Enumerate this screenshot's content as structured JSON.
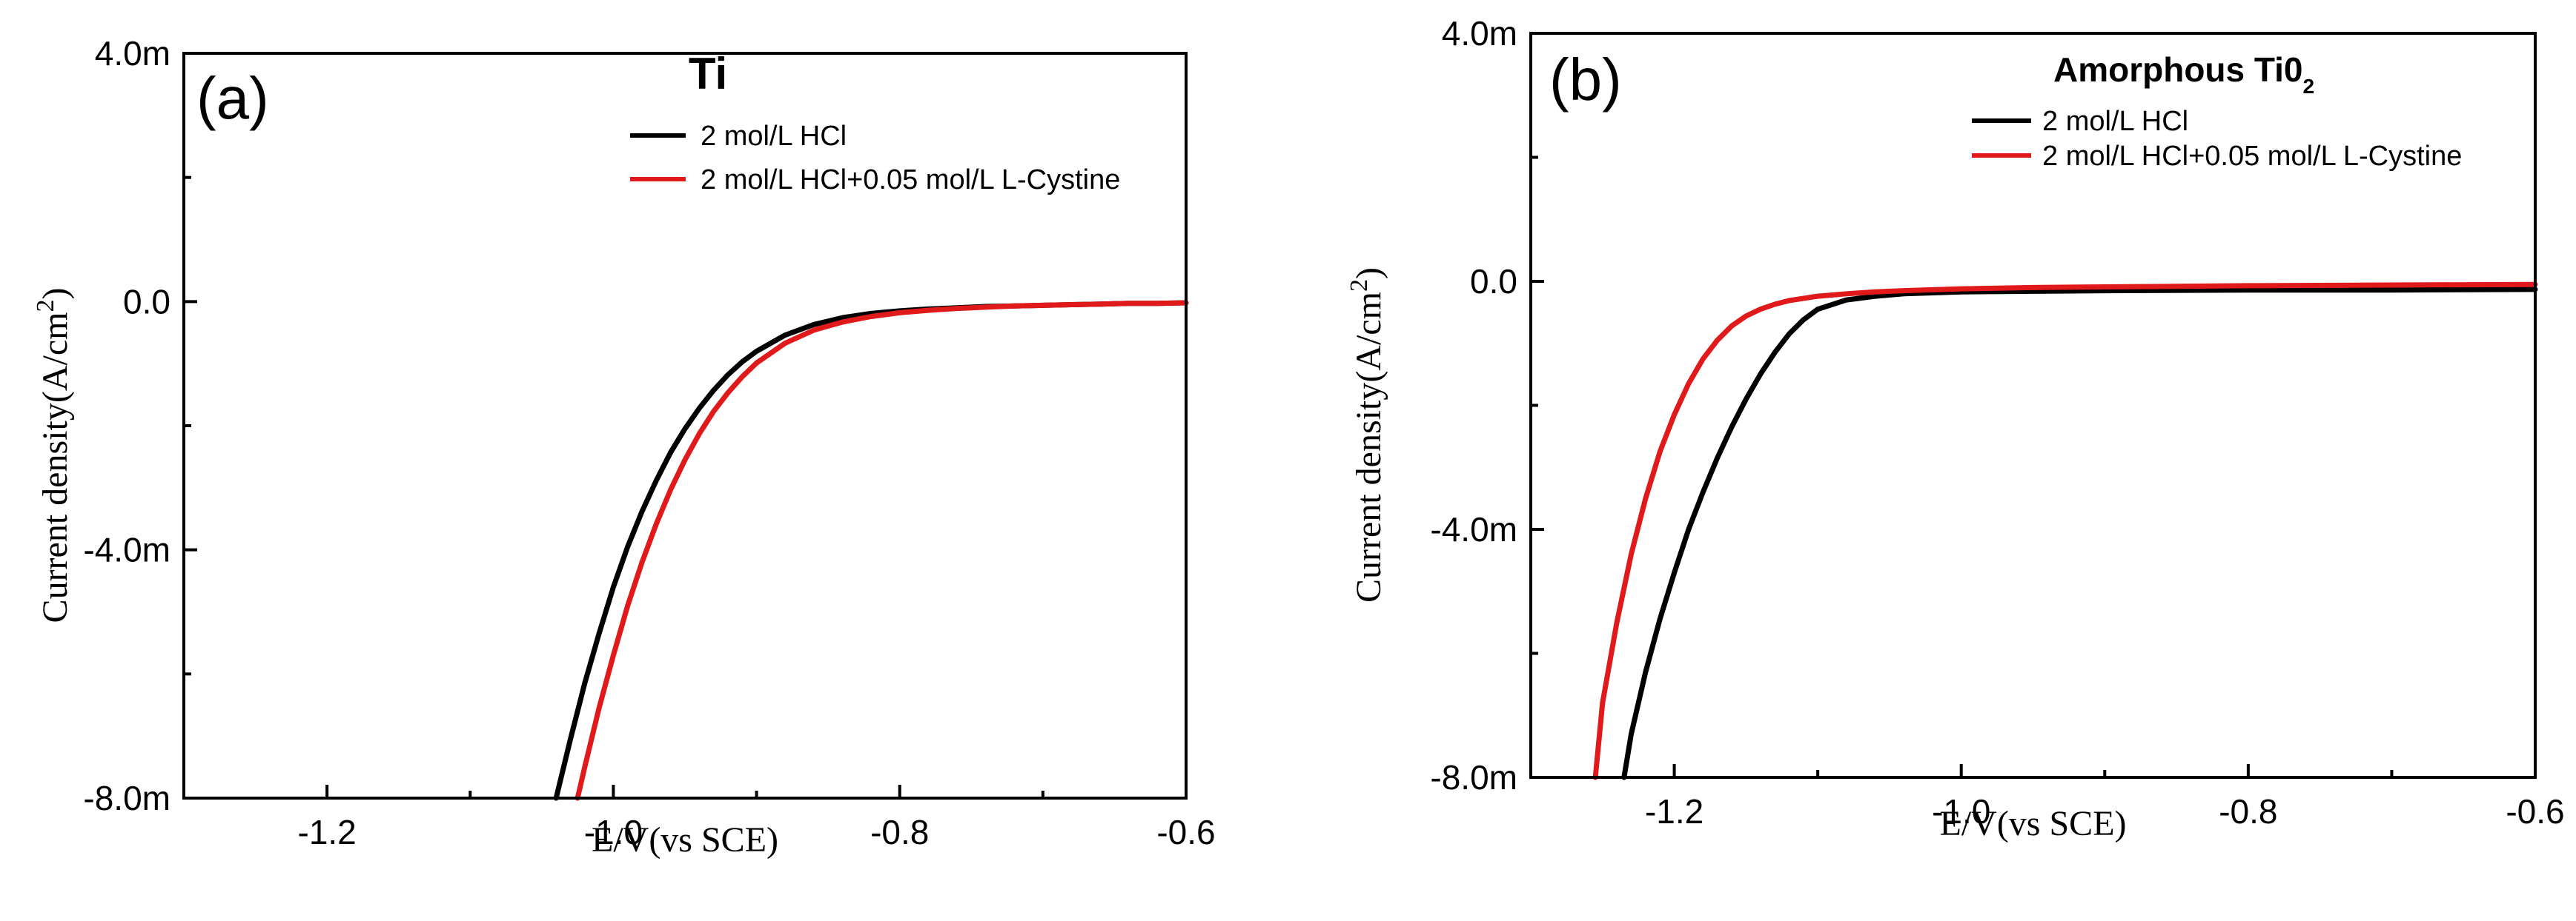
{
  "chart_data": [
    {
      "type": "line",
      "panel_label": "(a)",
      "title": "Ti",
      "xlabel": "E/V(vs SCE)",
      "ylabel": "Current density(A/cm",
      "ylabel_sup": "2",
      "ylabel_end": ")",
      "xlim": [
        -1.3,
        -0.6
      ],
      "ylim": [
        -8.0,
        4.0
      ],
      "xticks": [
        -1.2,
        -1.0,
        -0.8,
        -0.6
      ],
      "xtick_labels": [
        "-1.2",
        "-1.0",
        "-0.8",
        "-0.6"
      ],
      "yticks": [
        -8.0,
        -4.0,
        0.0,
        4.0
      ],
      "ytick_labels": [
        "-8.0m",
        "-4.0m",
        "0.0",
        "4.0m"
      ],
      "legend_position": "top-right",
      "series": [
        {
          "name": "2 mol/L HCl",
          "color": "#000000",
          "x": [
            -1.04,
            -1.03,
            -1.02,
            -1.01,
            -1.0,
            -0.99,
            -0.98,
            -0.97,
            -0.96,
            -0.95,
            -0.94,
            -0.93,
            -0.92,
            -0.91,
            -0.9,
            -0.88,
            -0.86,
            -0.84,
            -0.82,
            -0.8,
            -0.78,
            -0.76,
            -0.74,
            -0.72,
            -0.7,
            -0.68,
            -0.66,
            -0.64,
            -0.62,
            -0.6
          ],
          "y": [
            -8.0,
            -7.05,
            -6.15,
            -5.35,
            -4.6,
            -3.95,
            -3.38,
            -2.88,
            -2.43,
            -2.05,
            -1.72,
            -1.43,
            -1.18,
            -0.97,
            -0.8,
            -0.54,
            -0.37,
            -0.26,
            -0.19,
            -0.15,
            -0.12,
            -0.1,
            -0.08,
            -0.07,
            -0.06,
            -0.05,
            -0.04,
            -0.03,
            -0.03,
            -0.02
          ]
        },
        {
          "name": "2 mol/L HCl+0.05 mol/L L-Cystine",
          "color": "#e0191b",
          "x": [
            -1.025,
            -1.02,
            -1.01,
            -1.0,
            -0.99,
            -0.98,
            -0.97,
            -0.96,
            -0.95,
            -0.94,
            -0.93,
            -0.92,
            -0.91,
            -0.9,
            -0.88,
            -0.86,
            -0.84,
            -0.82,
            -0.8,
            -0.78,
            -0.76,
            -0.74,
            -0.72,
            -0.7,
            -0.68,
            -0.66,
            -0.64,
            -0.62,
            -0.6
          ],
          "y": [
            -8.0,
            -7.5,
            -6.55,
            -5.7,
            -4.9,
            -4.2,
            -3.58,
            -3.03,
            -2.55,
            -2.13,
            -1.77,
            -1.47,
            -1.21,
            -0.99,
            -0.67,
            -0.46,
            -0.33,
            -0.24,
            -0.18,
            -0.14,
            -0.11,
            -0.09,
            -0.07,
            -0.06,
            -0.05,
            -0.04,
            -0.03,
            -0.03,
            -0.02
          ]
        }
      ]
    },
    {
      "type": "line",
      "panel_label": "(b)",
      "title": "Amorphous Ti0",
      "title_sub": "2",
      "xlabel": "E/V(vs SCE)",
      "ylabel": "Current density(A/cm",
      "ylabel_sup": "2",
      "ylabel_end": ")",
      "xlim": [
        -1.3,
        -0.6
      ],
      "ylim": [
        -8.0,
        4.0
      ],
      "xticks": [
        -1.2,
        -1.0,
        -0.8,
        -0.6
      ],
      "xtick_labels": [
        "-1.2",
        "-1.0",
        "-0.8",
        "-0.6"
      ],
      "yticks": [
        -8.0,
        -4.0,
        0.0,
        4.0
      ],
      "ytick_labels": [
        "-8.0m",
        "-4.0m",
        "0.0",
        "4.0m"
      ],
      "legend_position": "top-right",
      "series": [
        {
          "name": "2 mol/L HCl",
          "color": "#000000",
          "x": [
            -1.235,
            -1.23,
            -1.22,
            -1.21,
            -1.2,
            -1.19,
            -1.18,
            -1.17,
            -1.16,
            -1.15,
            -1.14,
            -1.13,
            -1.12,
            -1.11,
            -1.1,
            -1.08,
            -1.06,
            -1.04,
            -1.0,
            -0.95,
            -0.9,
            -0.8,
            -0.7,
            -0.6
          ],
          "y": [
            -8.0,
            -7.3,
            -6.3,
            -5.45,
            -4.7,
            -4.0,
            -3.4,
            -2.85,
            -2.35,
            -1.9,
            -1.5,
            -1.15,
            -0.85,
            -0.62,
            -0.45,
            -0.3,
            -0.24,
            -0.2,
            -0.17,
            -0.16,
            -0.15,
            -0.14,
            -0.14,
            -0.13
          ]
        },
        {
          "name": "2 mol/L HCl+0.05 mol/L L-Cystine",
          "color": "#e0191b",
          "x": [
            -1.255,
            -1.25,
            -1.24,
            -1.23,
            -1.22,
            -1.21,
            -1.2,
            -1.19,
            -1.18,
            -1.17,
            -1.16,
            -1.15,
            -1.14,
            -1.13,
            -1.12,
            -1.1,
            -1.08,
            -1.06,
            -1.04,
            -1.0,
            -0.95,
            -0.9,
            -0.8,
            -0.7,
            -0.6
          ],
          "y": [
            -8.0,
            -6.8,
            -5.5,
            -4.4,
            -3.5,
            -2.75,
            -2.15,
            -1.65,
            -1.25,
            -0.95,
            -0.72,
            -0.56,
            -0.45,
            -0.37,
            -0.31,
            -0.24,
            -0.2,
            -0.17,
            -0.15,
            -0.12,
            -0.1,
            -0.09,
            -0.07,
            -0.06,
            -0.05
          ]
        }
      ]
    }
  ]
}
